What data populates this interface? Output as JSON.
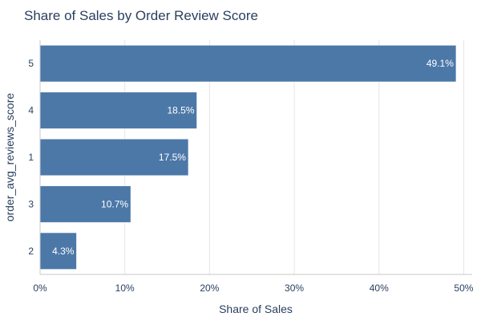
{
  "chart_data": {
    "type": "bar",
    "orientation": "horizontal",
    "title": "Share of Sales by Order Review Score",
    "xlabel": "Share of Sales",
    "ylabel": "order_avg_reviews_score",
    "categories": [
      "5",
      "4",
      "1",
      "3",
      "2"
    ],
    "values": [
      49.1,
      18.5,
      17.5,
      10.7,
      4.3
    ],
    "data_labels": [
      "49.1%",
      "18.5%",
      "17.5%",
      "10.7%",
      "4.3%"
    ],
    "xlim": [
      0,
      51
    ],
    "xticks": [
      0,
      10,
      20,
      30,
      40,
      50
    ],
    "xtick_labels": [
      "0%",
      "10%",
      "20%",
      "30%",
      "40%",
      "50%"
    ],
    "grid": true,
    "bar_color": "#4c78a8"
  }
}
